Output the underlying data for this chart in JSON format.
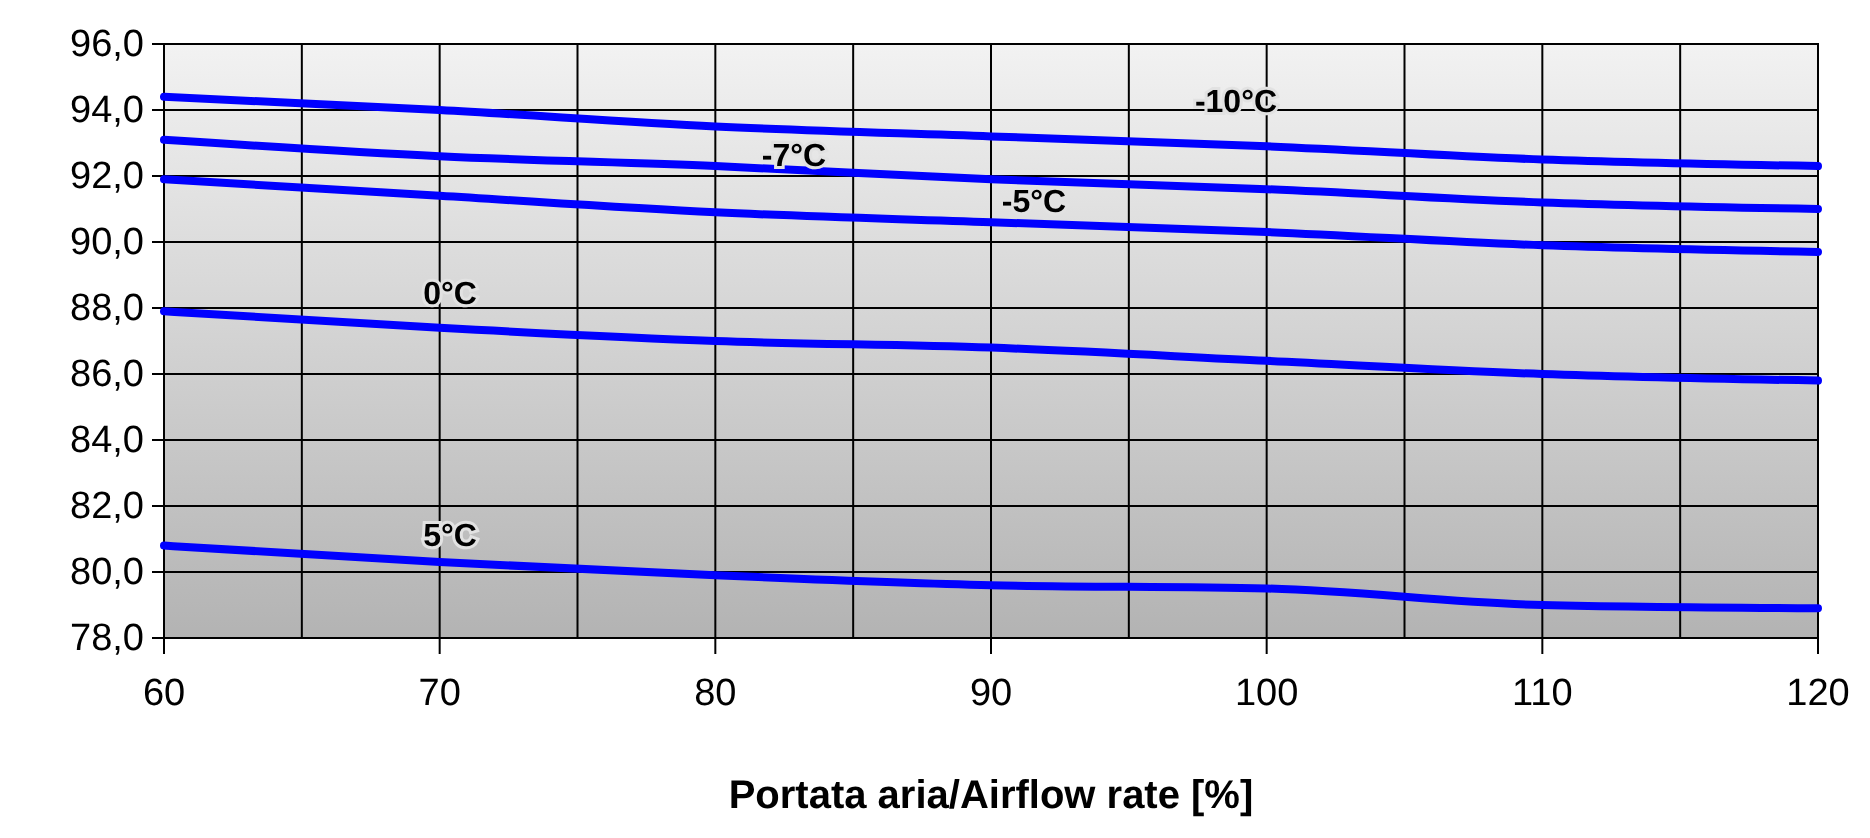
{
  "chart_data": {
    "type": "line",
    "xlabel": "Portata aria/Airflow rate [%]",
    "x": [
      60,
      70,
      80,
      90,
      100,
      110,
      120
    ],
    "series": [
      {
        "color": "#0000ff",
        "values": [
          94.4,
          94.0,
          93.5,
          93.2,
          92.9,
          92.5,
          92.3
        ]
      },
      {
        "color": "#0000ff",
        "values": [
          93.1,
          92.6,
          92.3,
          91.9,
          91.6,
          91.2,
          91.0
        ]
      },
      {
        "color": "#0000ff",
        "values": [
          91.9,
          91.4,
          90.9,
          90.6,
          90.3,
          89.9,
          89.7
        ]
      },
      {
        "color": "#0000ff",
        "values": [
          87.9,
          87.4,
          87.0,
          86.8,
          86.4,
          86.0,
          85.8
        ]
      },
      {
        "color": "#0000ff",
        "values": [
          80.8,
          80.3,
          79.9,
          79.6,
          79.5,
          79.0,
          78.9
        ]
      }
    ],
    "annotations": [
      "-10°C",
      "-7°C",
      "-5°C",
      "0°C",
      "5°C"
    ],
    "xlim": [
      60,
      120
    ],
    "xticks": [
      60,
      {
        "value": 65,
        "label": null
      },
      70,
      {
        "value": 75,
        "label": null
      },
      80,
      {
        "value": 85,
        "label": null
      },
      90,
      {
        "value": 95,
        "label": null
      },
      100,
      {
        "value": 105,
        "label": null
      },
      110,
      {
        "value": 115,
        "label": null
      },
      120
    ],
    "ylim": [
      78,
      96
    ],
    "yticks": [
      {
        "value": 78,
        "label": "78,0"
      },
      {
        "value": 80,
        "label": "80,0"
      },
      {
        "value": 82,
        "label": "82,0"
      },
      {
        "value": 84,
        "label": "84,0"
      },
      {
        "value": 86,
        "label": "86,0"
      },
      {
        "value": 88,
        "label": "88,0"
      },
      {
        "value": 90,
        "label": "90,0"
      },
      {
        "value": 92,
        "label": "92,0"
      },
      {
        "value": 94,
        "label": "94,0"
      },
      {
        "value": 96,
        "label": "96,0"
      }
    ],
    "grid": true,
    "marker": "none",
    "line_style": "solid"
  }
}
